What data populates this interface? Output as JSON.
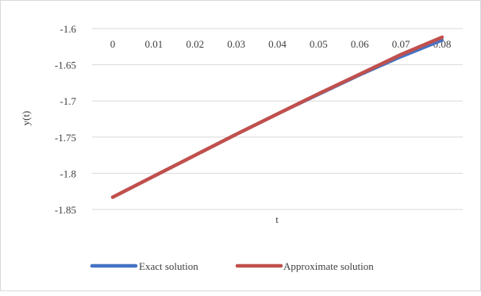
{
  "chart_data": {
    "type": "line",
    "title": "",
    "xlabel": "t",
    "ylabel": "y(t)",
    "x": [
      0,
      0.01,
      0.02,
      0.03,
      0.04,
      0.05,
      0.06,
      0.07,
      0.08
    ],
    "x_tick_labels": [
      "0",
      "0.01",
      "0.02",
      "0.03",
      "0.04",
      "0.05",
      "0.06",
      "0.07",
      "0.08"
    ],
    "y_tick_labels": [
      "-1.6",
      "-1.65",
      "-1.7",
      "-1.75",
      "-1.8",
      "-1.85"
    ],
    "ylim": [
      -1.85,
      -1.6
    ],
    "yticks": [
      -1.6,
      -1.65,
      -1.7,
      -1.75,
      -1.8,
      -1.85
    ],
    "grid": true,
    "legend_position": "bottom",
    "series": [
      {
        "name": "Exact solution",
        "color": "#4472c4",
        "values": [
          -1.833,
          -1.804,
          -1.775,
          -1.746,
          -1.718,
          -1.691,
          -1.664,
          -1.639,
          -1.616
        ]
      },
      {
        "name": "Approximate solution",
        "color": "#c0504d",
        "values": [
          -1.833,
          -1.804,
          -1.775,
          -1.746,
          -1.718,
          -1.69,
          -1.663,
          -1.636,
          -1.612
        ]
      }
    ]
  }
}
